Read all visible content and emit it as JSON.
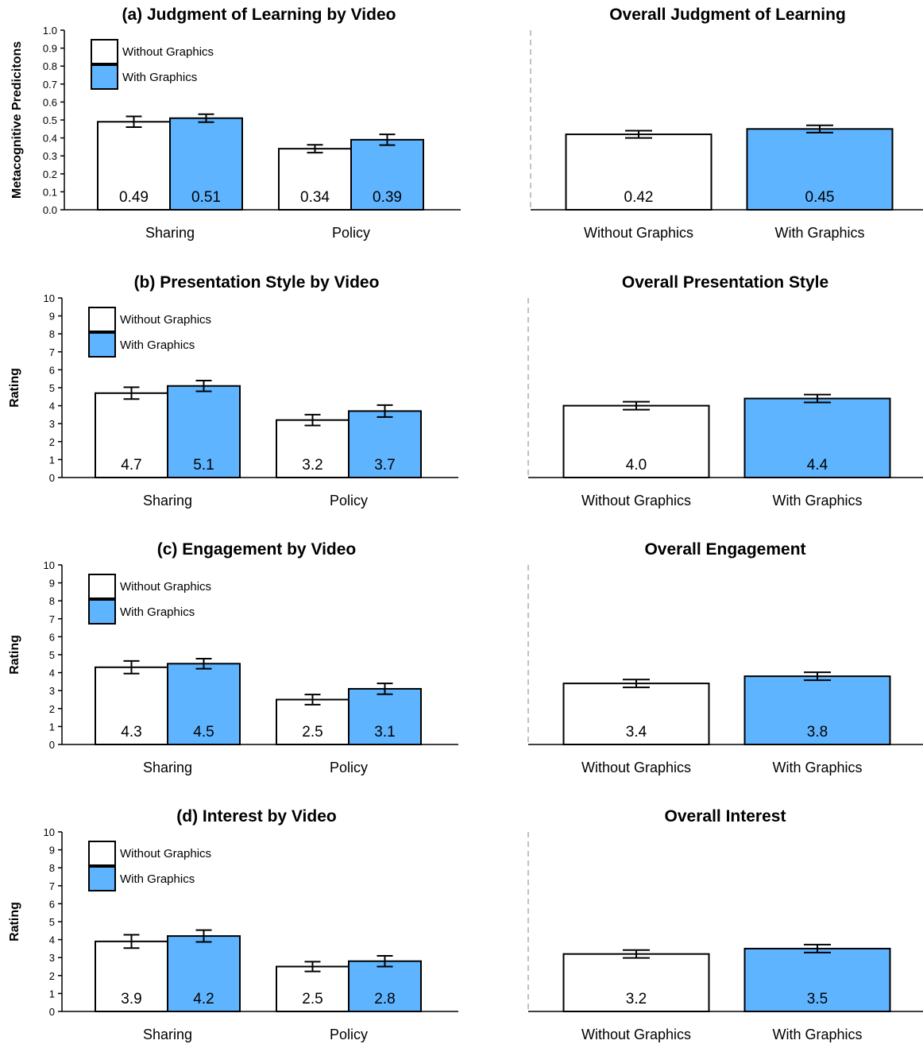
{
  "colors": {
    "without_graphics": "#ffffff",
    "with_graphics": "#5fb4ff",
    "stroke": "#000000",
    "divider": "#9a9a9a"
  },
  "chart_data": [
    {
      "type": "bar",
      "title": "(a) Judgment of Learning by Video",
      "ylabel": "Metacognitive Predicitons",
      "ylim": [
        0,
        1
      ],
      "yticks": [
        "0.0",
        "0.1",
        "0.2",
        "0.3",
        "0.4",
        "0.5",
        "0.6",
        "0.7",
        "0.8",
        "0.9",
        "1.0"
      ],
      "categories": [
        "Sharing",
        "Policy"
      ],
      "series": [
        {
          "name": "Without Graphics",
          "values": [
            0.49,
            0.34
          ],
          "labels": [
            "0.49",
            "0.34"
          ],
          "error": [
            0.03,
            0.022
          ]
        },
        {
          "name": "With Graphics",
          "values": [
            0.51,
            0.39
          ],
          "labels": [
            "0.51",
            "0.39"
          ],
          "error": [
            0.022,
            0.03
          ]
        }
      ],
      "legend": "top-left"
    },
    {
      "type": "bar",
      "title": "Overall Judgment of Learning",
      "ylim": [
        0,
        1
      ],
      "categories": [
        "Without Graphics",
        "With Graphics"
      ],
      "values": [
        0.42,
        0.45
      ],
      "labels": [
        "0.42",
        "0.45"
      ],
      "error": [
        0.02,
        0.02
      ]
    },
    {
      "type": "bar",
      "title": "(b) Presentation Style by Video",
      "ylabel": "Rating",
      "ylim": [
        0,
        10
      ],
      "yticks": [
        "0",
        "1",
        "2",
        "3",
        "4",
        "5",
        "6",
        "7",
        "8",
        "9",
        "10"
      ],
      "categories": [
        "Sharing",
        "Policy"
      ],
      "series": [
        {
          "name": "Without Graphics",
          "values": [
            4.7,
            3.2
          ],
          "labels": [
            "4.7",
            "3.2"
          ],
          "error": [
            0.33,
            0.3
          ]
        },
        {
          "name": "With Graphics",
          "values": [
            5.1,
            3.7
          ],
          "labels": [
            "5.1",
            "3.7"
          ],
          "error": [
            0.3,
            0.33
          ]
        }
      ],
      "legend": "top-left"
    },
    {
      "type": "bar",
      "title": "Overall Presentation Style",
      "ylim": [
        0,
        10
      ],
      "categories": [
        "Without Graphics",
        "With Graphics"
      ],
      "values": [
        4.0,
        4.4
      ],
      "labels": [
        "4.0",
        "4.4"
      ],
      "error": [
        0.22,
        0.22
      ]
    },
    {
      "type": "bar",
      "title": "(c) Engagement by Video",
      "ylabel": "Rating",
      "ylim": [
        0,
        10
      ],
      "yticks": [
        "0",
        "1",
        "2",
        "3",
        "4",
        "5",
        "6",
        "7",
        "8",
        "9",
        "10"
      ],
      "categories": [
        "Sharing",
        "Policy"
      ],
      "series": [
        {
          "name": "Without Graphics",
          "values": [
            4.3,
            2.5
          ],
          "labels": [
            "4.3",
            "2.5"
          ],
          "error": [
            0.35,
            0.28
          ]
        },
        {
          "name": "With Graphics",
          "values": [
            4.5,
            3.1
          ],
          "labels": [
            "4.5",
            "3.1"
          ],
          "error": [
            0.28,
            0.3
          ]
        }
      ],
      "legend": "top-left"
    },
    {
      "type": "bar",
      "title": "Overall Engagement",
      "ylim": [
        0,
        10
      ],
      "categories": [
        "Without Graphics",
        "With Graphics"
      ],
      "values": [
        3.4,
        3.8
      ],
      "labels": [
        "3.4",
        "3.8"
      ],
      "error": [
        0.22,
        0.22
      ]
    },
    {
      "type": "bar",
      "title": "(d) Interest by Video",
      "ylabel": "Rating",
      "ylim": [
        0,
        10
      ],
      "yticks": [
        "0",
        "1",
        "2",
        "3",
        "4",
        "5",
        "6",
        "7",
        "8",
        "9",
        "10"
      ],
      "categories": [
        "Sharing",
        "Policy"
      ],
      "series": [
        {
          "name": "Without Graphics",
          "values": [
            3.9,
            2.5
          ],
          "labels": [
            "3.9",
            "2.5"
          ],
          "error": [
            0.37,
            0.27
          ]
        },
        {
          "name": "With Graphics",
          "values": [
            4.2,
            2.8
          ],
          "labels": [
            "4.2",
            "2.8"
          ],
          "error": [
            0.33,
            0.3
          ]
        }
      ],
      "legend": "top-left"
    },
    {
      "type": "bar",
      "title": "Overall Interest",
      "ylim": [
        0,
        10
      ],
      "categories": [
        "Without Graphics",
        "With Graphics"
      ],
      "values": [
        3.2,
        3.5
      ],
      "labels": [
        "3.2",
        "3.5"
      ],
      "error": [
        0.22,
        0.22
      ]
    }
  ]
}
